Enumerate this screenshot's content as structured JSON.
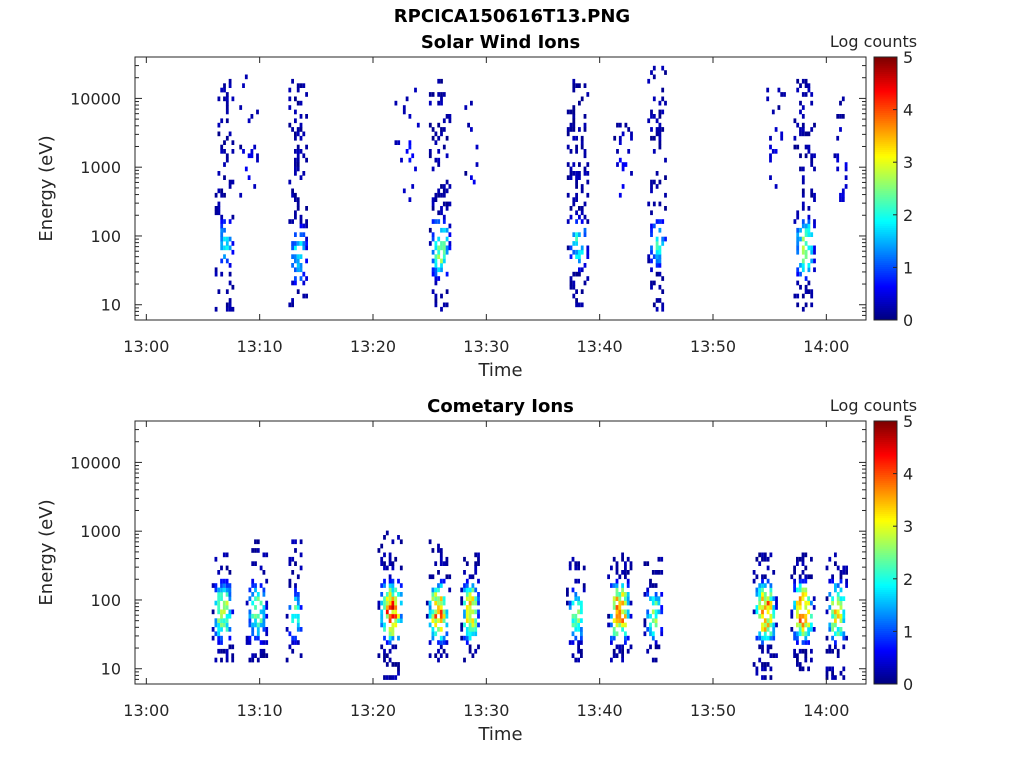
{
  "figure": {
    "file_title": "RPCICA150616T13.PNG",
    "background": "#ffffff"
  },
  "chart_data": [
    {
      "type": "heatmap",
      "title": "Solar Wind Ions",
      "xlabel": "Time",
      "ylabel": "Energy (eV)",
      "y_scale": "log",
      "xlim": [
        "12:59:00",
        "14:03:30"
      ],
      "ylim": [
        6,
        40000
      ],
      "x_ticks": [
        "13:00",
        "13:10",
        "13:20",
        "13:30",
        "13:40",
        "13:50",
        "14:00"
      ],
      "y_ticks": [
        10,
        100,
        1000,
        10000
      ],
      "y_tick_labels": [
        "10",
        "100",
        "1000",
        "10000"
      ],
      "colorbar": {
        "label": "Log counts",
        "min": 0,
        "max": 5,
        "ticks": [
          "0",
          "1",
          "2",
          "3",
          "4",
          "5"
        ],
        "colormap": "jet"
      },
      "z_units": "Log counts",
      "bursts": [
        {
          "center": "13:06:50",
          "width_min": 1.6,
          "sparse_e": [
            8,
            20000
          ],
          "core_e": [
            40,
            150
          ],
          "core_peak": 1.6,
          "density": 0.55
        },
        {
          "center": "13:09:00",
          "width_min": 1.6,
          "sparse_e": [
            300,
            25000
          ],
          "core_e": [
            300,
            3000
          ],
          "core_peak": 0.4,
          "density": 0.18
        },
        {
          "center": "13:13:20",
          "width_min": 1.6,
          "sparse_e": [
            8,
            25000
          ],
          "core_e": [
            25,
            120
          ],
          "core_peak": 1.7,
          "density": 0.55
        },
        {
          "center": "13:23:00",
          "width_min": 2.2,
          "sparse_e": [
            300,
            20000
          ],
          "core_e": [
            300,
            5000
          ],
          "core_peak": 0.4,
          "density": 0.16
        },
        {
          "center": "13:25:50",
          "width_min": 1.8,
          "sparse_e": [
            8,
            20000
          ],
          "core_e": [
            30,
            150
          ],
          "core_peak": 2.4,
          "density": 0.6
        },
        {
          "center": "13:28:40",
          "width_min": 1.2,
          "sparse_e": [
            300,
            10000
          ],
          "core_e": [
            300,
            3000
          ],
          "core_peak": 0.4,
          "density": 0.2
        },
        {
          "center": "13:38:00",
          "width_min": 1.8,
          "sparse_e": [
            8,
            20000
          ],
          "core_e": [
            40,
            150
          ],
          "core_peak": 1.8,
          "density": 0.55
        },
        {
          "center": "13:42:00",
          "width_min": 1.6,
          "sparse_e": [
            300,
            10000
          ],
          "core_e": [
            300,
            3000
          ],
          "core_peak": 0.4,
          "density": 0.2
        },
        {
          "center": "13:45:00",
          "width_min": 1.6,
          "sparse_e": [
            8,
            30000
          ],
          "core_e": [
            40,
            150
          ],
          "core_peak": 1.8,
          "density": 0.55
        },
        {
          "center": "13:55:30",
          "width_min": 1.6,
          "sparse_e": [
            500,
            15000
          ],
          "core_e": [
            500,
            3000
          ],
          "core_peak": 0.4,
          "density": 0.2
        },
        {
          "center": "13:58:00",
          "width_min": 1.8,
          "sparse_e": [
            8,
            20000
          ],
          "core_e": [
            30,
            150
          ],
          "core_peak": 2.6,
          "density": 0.6
        },
        {
          "center": "14:01:20",
          "width_min": 1.4,
          "sparse_e": [
            300,
            10000
          ],
          "core_e": [
            300,
            3000
          ],
          "core_peak": 0.4,
          "density": 0.2
        }
      ]
    },
    {
      "type": "heatmap",
      "title": "Cometary Ions",
      "xlabel": "Time",
      "ylabel": "Energy (eV)",
      "y_scale": "log",
      "xlim": [
        "12:59:00",
        "14:03:30"
      ],
      "ylim": [
        6,
        40000
      ],
      "x_ticks": [
        "13:00",
        "13:10",
        "13:20",
        "13:30",
        "13:40",
        "13:50",
        "14:00"
      ],
      "y_ticks": [
        10,
        100,
        1000,
        10000
      ],
      "y_tick_labels": [
        "10",
        "100",
        "1000",
        "10000"
      ],
      "colorbar": {
        "label": "Log counts",
        "min": 0,
        "max": 5,
        "ticks": [
          "0",
          "1",
          "2",
          "3",
          "4",
          "5"
        ],
        "colormap": "jet"
      },
      "z_units": "Log counts",
      "bursts": [
        {
          "center": "13:06:40",
          "width_min": 1.8,
          "sparse_e": [
            12,
            500
          ],
          "core_e": [
            30,
            150
          ],
          "core_peak": 2.8,
          "density": 0.75
        },
        {
          "center": "13:09:40",
          "width_min": 1.8,
          "sparse_e": [
            12,
            800
          ],
          "core_e": [
            30,
            150
          ],
          "core_peak": 2.3,
          "density": 0.7
        },
        {
          "center": "13:13:00",
          "width_min": 1.4,
          "sparse_e": [
            12,
            800
          ],
          "core_e": [
            30,
            120
          ],
          "core_peak": 2.0,
          "density": 0.6
        },
        {
          "center": "13:21:30",
          "width_min": 2.2,
          "sparse_e": [
            7,
            1000
          ],
          "core_e": [
            30,
            150
          ],
          "core_peak": 3.8,
          "density": 0.8
        },
        {
          "center": "13:25:40",
          "width_min": 2.0,
          "sparse_e": [
            12,
            800
          ],
          "core_e": [
            30,
            150
          ],
          "core_peak": 3.6,
          "density": 0.8
        },
        {
          "center": "13:28:30",
          "width_min": 1.6,
          "sparse_e": [
            12,
            500
          ],
          "core_e": [
            30,
            150
          ],
          "core_peak": 3.4,
          "density": 0.8
        },
        {
          "center": "13:37:50",
          "width_min": 1.6,
          "sparse_e": [
            12,
            400
          ],
          "core_e": [
            30,
            120
          ],
          "core_peak": 2.6,
          "density": 0.7
        },
        {
          "center": "13:41:40",
          "width_min": 2.0,
          "sparse_e": [
            12,
            500
          ],
          "core_e": [
            30,
            150
          ],
          "core_peak": 3.8,
          "density": 0.8
        },
        {
          "center": "13:44:40",
          "width_min": 1.6,
          "sparse_e": [
            12,
            400
          ],
          "core_e": [
            30,
            120
          ],
          "core_peak": 2.5,
          "density": 0.7
        },
        {
          "center": "13:54:30",
          "width_min": 2.0,
          "sparse_e": [
            7,
            500
          ],
          "core_e": [
            30,
            150
          ],
          "core_peak": 3.8,
          "density": 0.8
        },
        {
          "center": "13:57:50",
          "width_min": 2.0,
          "sparse_e": [
            10,
            500
          ],
          "core_e": [
            30,
            150
          ],
          "core_peak": 3.8,
          "density": 0.8
        },
        {
          "center": "14:00:50",
          "width_min": 1.8,
          "sparse_e": [
            7,
            500
          ],
          "core_e": [
            30,
            150
          ],
          "core_peak": 3.2,
          "density": 0.75
        }
      ]
    }
  ]
}
